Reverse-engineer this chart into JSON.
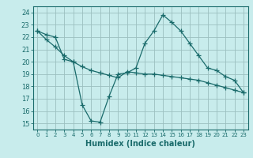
{
  "xlabel": "Humidex (Indice chaleur)",
  "bg_color": "#c8ecec",
  "grid_color": "#9bbfbf",
  "line_color": "#1a6b6b",
  "xlim": [
    -0.5,
    23.5
  ],
  "ylim": [
    14.5,
    24.5
  ],
  "xticks": [
    0,
    1,
    2,
    3,
    4,
    5,
    6,
    7,
    8,
    9,
    10,
    11,
    12,
    13,
    14,
    15,
    16,
    17,
    18,
    19,
    20,
    21,
    22,
    23
  ],
  "yticks": [
    15,
    16,
    17,
    18,
    19,
    20,
    21,
    22,
    23,
    24
  ],
  "line1_x": [
    0,
    1,
    2,
    3,
    4,
    5,
    6,
    7,
    8,
    9,
    10,
    11,
    12,
    13,
    14,
    15,
    16,
    17,
    18,
    19,
    20,
    21,
    22,
    23
  ],
  "line1_y": [
    22.5,
    22.2,
    22.0,
    20.2,
    20.0,
    16.5,
    15.2,
    15.1,
    17.2,
    19.0,
    19.1,
    19.5,
    21.5,
    22.5,
    23.8,
    23.2,
    22.5,
    21.5,
    20.5,
    19.5,
    19.3,
    18.8,
    18.5,
    17.5
  ],
  "line2_x": [
    0,
    1,
    2,
    3,
    4,
    5,
    6,
    7,
    8,
    9,
    10,
    11,
    12,
    13,
    14,
    15,
    16,
    17,
    18,
    19,
    20,
    21,
    22,
    23
  ],
  "line2_y": [
    22.5,
    21.8,
    21.2,
    20.5,
    20.0,
    19.6,
    19.3,
    19.1,
    18.9,
    18.7,
    19.2,
    19.1,
    19.0,
    19.0,
    18.9,
    18.8,
    18.7,
    18.6,
    18.5,
    18.3,
    18.1,
    17.9,
    17.7,
    17.5
  ]
}
